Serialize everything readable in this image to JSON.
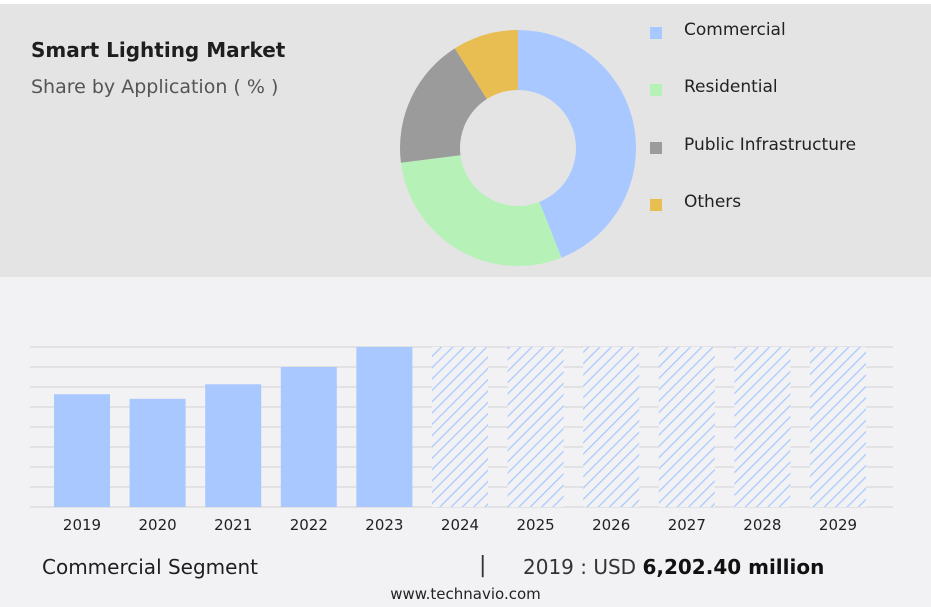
{
  "header": {
    "title": "Smart Lighting Market",
    "subtitle": "Share by Application ( % )"
  },
  "chart_data": [
    {
      "type": "pie",
      "variant": "donut",
      "legend_position": "right",
      "series": [
        {
          "name": "Commercial",
          "value": 44,
          "color": "#a9c8ff"
        },
        {
          "name": "Residential",
          "value": 29,
          "color": "#b6f2b8"
        },
        {
          "name": "Public Infrastructure",
          "value": 18,
          "color": "#9b9b9b"
        },
        {
          "name": "Others",
          "value": 9,
          "color": "#e8bd52"
        }
      ]
    },
    {
      "type": "bar",
      "categories": [
        "2019",
        "2020",
        "2021",
        "2022",
        "2023",
        "2024",
        "2025",
        "2026",
        "2027",
        "2028",
        "2029"
      ],
      "values": [
        6202.4,
        5950,
        6750,
        7700,
        8800,
        null,
        null,
        null,
        null,
        null,
        null
      ],
      "forecast_categories": [
        "2024",
        "2025",
        "2026",
        "2027",
        "2028",
        "2029"
      ],
      "ylim": [
        0,
        8800
      ],
      "grid": true,
      "bar_color": "#a9c8ff"
    }
  ],
  "footer": {
    "segment_label": "Commercial Segment",
    "separator": "|",
    "year_prefix": "2019 : USD",
    "value_text": "6,202.40 million",
    "website": "www.technavio.com"
  }
}
